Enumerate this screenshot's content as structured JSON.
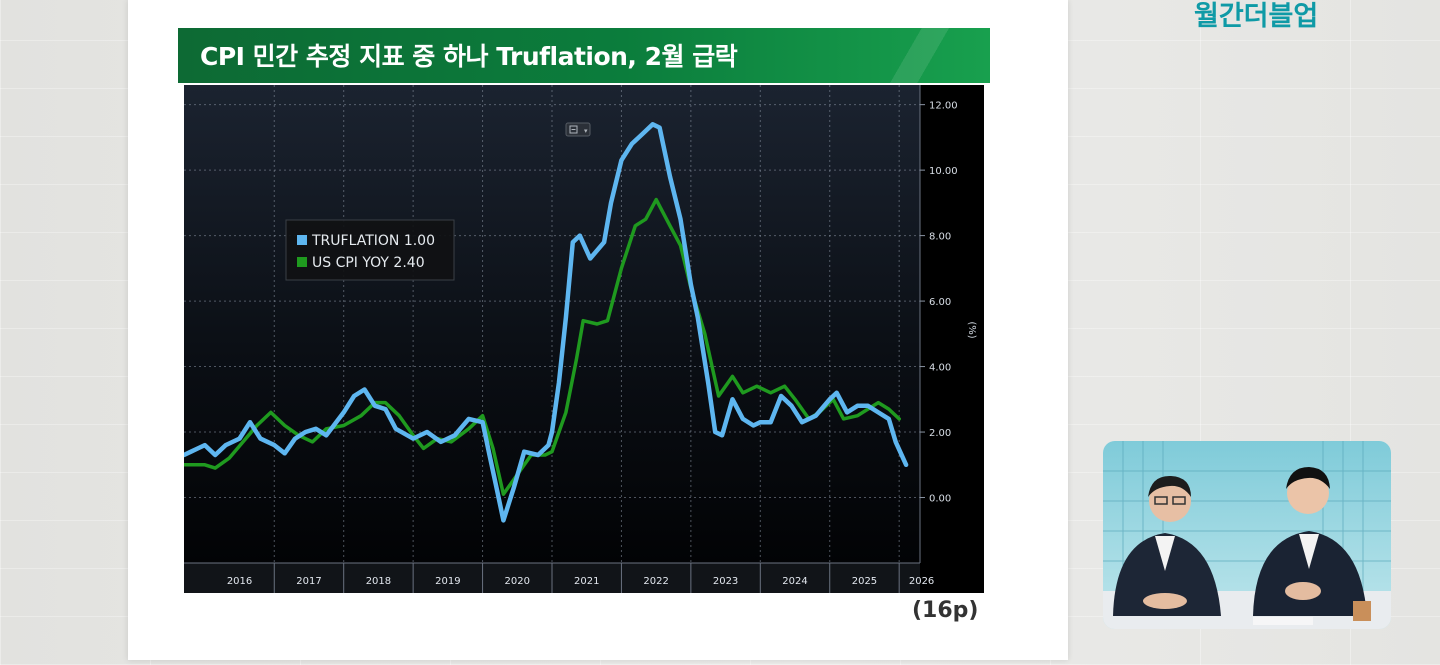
{
  "slide": {
    "title": "CPI 민간 추정 지표 중 하나 Truflation, 2월 급락",
    "page_ref": "(16p)"
  },
  "brand": {
    "logo_text": "월간더블업"
  },
  "colors": {
    "title_bar": "#0b7d3c",
    "truflation": "#5eb6f0",
    "cpi": "#1f9a1f",
    "chart_bg": "#000000",
    "brand": "#0f9aa6"
  },
  "chart_data": {
    "type": "line",
    "title": "",
    "xlabel": "",
    "ylabel": "(%)",
    "xlim": [
      2015.7,
      2026.3
    ],
    "ylim": [
      -2.0,
      12.6
    ],
    "yticks": [
      0,
      2,
      4,
      6,
      8,
      10,
      12
    ],
    "ytick_labels": [
      "0.00",
      "2.00",
      "4.00",
      "6.00",
      "8.00",
      "10.00",
      "12.00"
    ],
    "year_labels": [
      "2016",
      "2017",
      "2018",
      "2019",
      "2020",
      "2021",
      "2022",
      "2023",
      "2024",
      "2025",
      "2026"
    ],
    "grid": true,
    "legend_position": "upper-left",
    "series": [
      {
        "name": "TRUFLATION",
        "last_value": "1.00",
        "color": "#5eb6f0",
        "points": [
          [
            2015.7,
            1.3
          ],
          [
            2015.8,
            1.4
          ],
          [
            2015.9,
            1.5
          ],
          [
            2016.0,
            1.6
          ],
          [
            2016.15,
            1.3
          ],
          [
            2016.3,
            1.6
          ],
          [
            2016.5,
            1.8
          ],
          [
            2016.65,
            2.3
          ],
          [
            2016.8,
            1.8
          ],
          [
            2017.0,
            1.6
          ],
          [
            2017.15,
            1.35
          ],
          [
            2017.3,
            1.8
          ],
          [
            2017.45,
            2.0
          ],
          [
            2017.6,
            2.1
          ],
          [
            2017.75,
            1.9
          ],
          [
            2018.0,
            2.6
          ],
          [
            2018.15,
            3.1
          ],
          [
            2018.3,
            3.3
          ],
          [
            2018.45,
            2.8
          ],
          [
            2018.6,
            2.7
          ],
          [
            2018.75,
            2.1
          ],
          [
            2019.0,
            1.8
          ],
          [
            2019.2,
            2.0
          ],
          [
            2019.4,
            1.7
          ],
          [
            2019.6,
            1.9
          ],
          [
            2019.8,
            2.4
          ],
          [
            2020.0,
            2.3
          ],
          [
            2020.1,
            1.3
          ],
          [
            2020.2,
            0.3
          ],
          [
            2020.3,
            -0.7
          ],
          [
            2020.45,
            0.3
          ],
          [
            2020.6,
            1.4
          ],
          [
            2020.8,
            1.3
          ],
          [
            2020.95,
            1.6
          ],
          [
            2021.0,
            2.0
          ],
          [
            2021.1,
            3.5
          ],
          [
            2021.2,
            5.5
          ],
          [
            2021.3,
            7.8
          ],
          [
            2021.4,
            8.0
          ],
          [
            2021.55,
            7.3
          ],
          [
            2021.75,
            7.8
          ],
          [
            2021.85,
            9.0
          ],
          [
            2022.0,
            10.3
          ],
          [
            2022.15,
            10.8
          ],
          [
            2022.3,
            11.1
          ],
          [
            2022.45,
            11.4
          ],
          [
            2022.55,
            11.3
          ],
          [
            2022.7,
            9.8
          ],
          [
            2022.85,
            8.5
          ],
          [
            2023.0,
            6.5
          ],
          [
            2023.1,
            5.5
          ],
          [
            2023.25,
            3.5
          ],
          [
            2023.35,
            2.0
          ],
          [
            2023.45,
            1.9
          ],
          [
            2023.6,
            3.0
          ],
          [
            2023.75,
            2.4
          ],
          [
            2023.9,
            2.2
          ],
          [
            2024.0,
            2.3
          ],
          [
            2024.15,
            2.3
          ],
          [
            2024.3,
            3.1
          ],
          [
            2024.45,
            2.8
          ],
          [
            2024.6,
            2.3
          ],
          [
            2024.8,
            2.5
          ],
          [
            2025.0,
            3.0
          ],
          [
            2025.1,
            3.2
          ],
          [
            2025.25,
            2.6
          ],
          [
            2025.4,
            2.8
          ],
          [
            2025.55,
            2.8
          ],
          [
            2025.7,
            2.6
          ],
          [
            2025.85,
            2.4
          ],
          [
            2025.95,
            1.7
          ],
          [
            2026.1,
            1.0
          ]
        ]
      },
      {
        "name": "US CPI YOY",
        "last_value": "2.40",
        "color": "#1f9a1f",
        "points": [
          [
            2015.7,
            1.0
          ],
          [
            2016.0,
            1.0
          ],
          [
            2016.15,
            0.9
          ],
          [
            2016.35,
            1.2
          ],
          [
            2016.55,
            1.7
          ],
          [
            2016.75,
            2.2
          ],
          [
            2016.95,
            2.6
          ],
          [
            2017.15,
            2.2
          ],
          [
            2017.35,
            1.9
          ],
          [
            2017.55,
            1.7
          ],
          [
            2017.75,
            2.1
          ],
          [
            2018.0,
            2.2
          ],
          [
            2018.25,
            2.5
          ],
          [
            2018.45,
            2.9
          ],
          [
            2018.6,
            2.9
          ],
          [
            2018.8,
            2.5
          ],
          [
            2019.0,
            1.9
          ],
          [
            2019.15,
            1.5
          ],
          [
            2019.35,
            1.8
          ],
          [
            2019.55,
            1.7
          ],
          [
            2019.8,
            2.1
          ],
          [
            2020.0,
            2.5
          ],
          [
            2020.15,
            1.5
          ],
          [
            2020.3,
            0.1
          ],
          [
            2020.5,
            0.7
          ],
          [
            2020.7,
            1.3
          ],
          [
            2020.9,
            1.3
          ],
          [
            2021.0,
            1.4
          ],
          [
            2021.2,
            2.6
          ],
          [
            2021.35,
            4.2
          ],
          [
            2021.45,
            5.4
          ],
          [
            2021.65,
            5.3
          ],
          [
            2021.8,
            5.4
          ],
          [
            2022.0,
            7.0
          ],
          [
            2022.2,
            8.3
          ],
          [
            2022.35,
            8.5
          ],
          [
            2022.5,
            9.1
          ],
          [
            2022.7,
            8.3
          ],
          [
            2022.85,
            7.7
          ],
          [
            2023.0,
            6.4
          ],
          [
            2023.2,
            5.0
          ],
          [
            2023.4,
            3.1
          ],
          [
            2023.6,
            3.7
          ],
          [
            2023.75,
            3.2
          ],
          [
            2023.95,
            3.4
          ],
          [
            2024.15,
            3.2
          ],
          [
            2024.35,
            3.4
          ],
          [
            2024.5,
            3.0
          ],
          [
            2024.7,
            2.4
          ],
          [
            2024.85,
            2.6
          ],
          [
            2025.05,
            3.0
          ],
          [
            2025.2,
            2.4
          ],
          [
            2025.4,
            2.5
          ],
          [
            2025.55,
            2.7
          ],
          [
            2025.7,
            2.9
          ],
          [
            2025.85,
            2.7
          ],
          [
            2026.0,
            2.4
          ]
        ]
      }
    ]
  }
}
